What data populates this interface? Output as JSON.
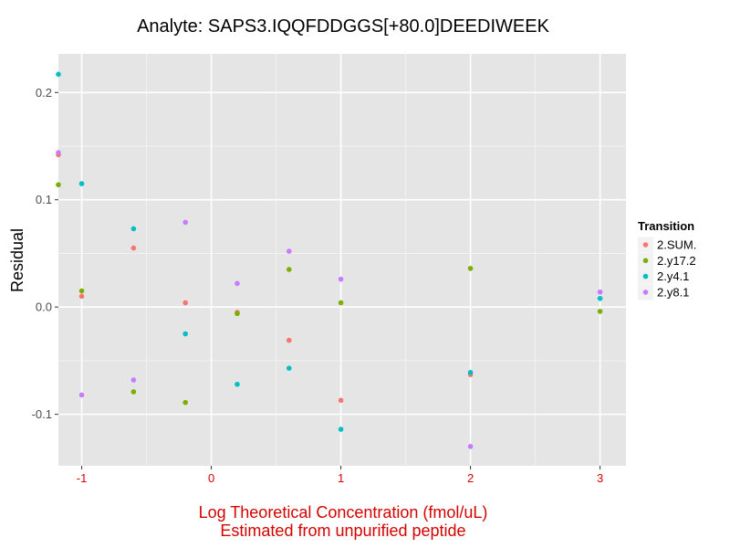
{
  "chart_data": {
    "type": "scatter",
    "title": "Analyte: SAPS3.IQQFDDGGS[+80.0]DEEDIWEEK",
    "xlabel_line1": "Log Theoretical Concentration (fmol/uL)",
    "xlabel_line2": "Estimated from unpurified peptide",
    "ylabel": "Residual",
    "xlim": [
      -1.18,
      3.2
    ],
    "ylim": [
      -0.148,
      0.236
    ],
    "x_ticks": [
      -1,
      0,
      1,
      2,
      3
    ],
    "x_tick_labels": [
      "-1",
      "0",
      "1",
      "2",
      "3"
    ],
    "y_ticks": [
      -0.1,
      0.0,
      0.1,
      0.2
    ],
    "y_tick_labels": [
      "-0.1",
      "0.0",
      "0.1",
      "0.2"
    ],
    "grid": true,
    "legend": {
      "title": "Transition",
      "placement": "right"
    },
    "series": [
      {
        "name": "2.SUM.",
        "color": "#F8766D",
        "points": [
          [
            -1.18,
            0.142
          ],
          [
            -1.0,
            0.01
          ],
          [
            -0.6,
            0.055
          ],
          [
            -0.2,
            0.004
          ],
          [
            0.2,
            -0.005
          ],
          [
            0.6,
            -0.031
          ],
          [
            1.0,
            -0.087
          ],
          [
            2.0,
            -0.063
          ]
        ]
      },
      {
        "name": "2.y17.2",
        "color": "#7CAE00",
        "points": [
          [
            -1.18,
            0.114
          ],
          [
            -1.0,
            0.015
          ],
          [
            -0.6,
            -0.079
          ],
          [
            -0.2,
            -0.089
          ],
          [
            0.2,
            -0.006
          ],
          [
            0.6,
            0.035
          ],
          [
            1.0,
            0.004
          ],
          [
            2.0,
            0.036
          ],
          [
            3.0,
            -0.004
          ]
        ]
      },
      {
        "name": "2.y4.1",
        "color": "#00BFC4",
        "points": [
          [
            -1.18,
            0.217
          ],
          [
            -1.0,
            0.115
          ],
          [
            -0.6,
            0.073
          ],
          [
            -0.2,
            -0.025
          ],
          [
            0.2,
            -0.072
          ],
          [
            0.6,
            -0.057
          ],
          [
            1.0,
            -0.114
          ],
          [
            2.0,
            -0.061
          ],
          [
            3.0,
            0.008
          ]
        ]
      },
      {
        "name": "2.y8.1",
        "color": "#C77CFF",
        "points": [
          [
            -1.18,
            0.144
          ],
          [
            -1.0,
            -0.082
          ],
          [
            -0.6,
            -0.068
          ],
          [
            -0.2,
            0.079
          ],
          [
            0.2,
            0.022
          ],
          [
            0.6,
            0.052
          ],
          [
            1.0,
            0.026
          ],
          [
            2.0,
            -0.13
          ],
          [
            3.0,
            0.014
          ]
        ]
      }
    ]
  }
}
